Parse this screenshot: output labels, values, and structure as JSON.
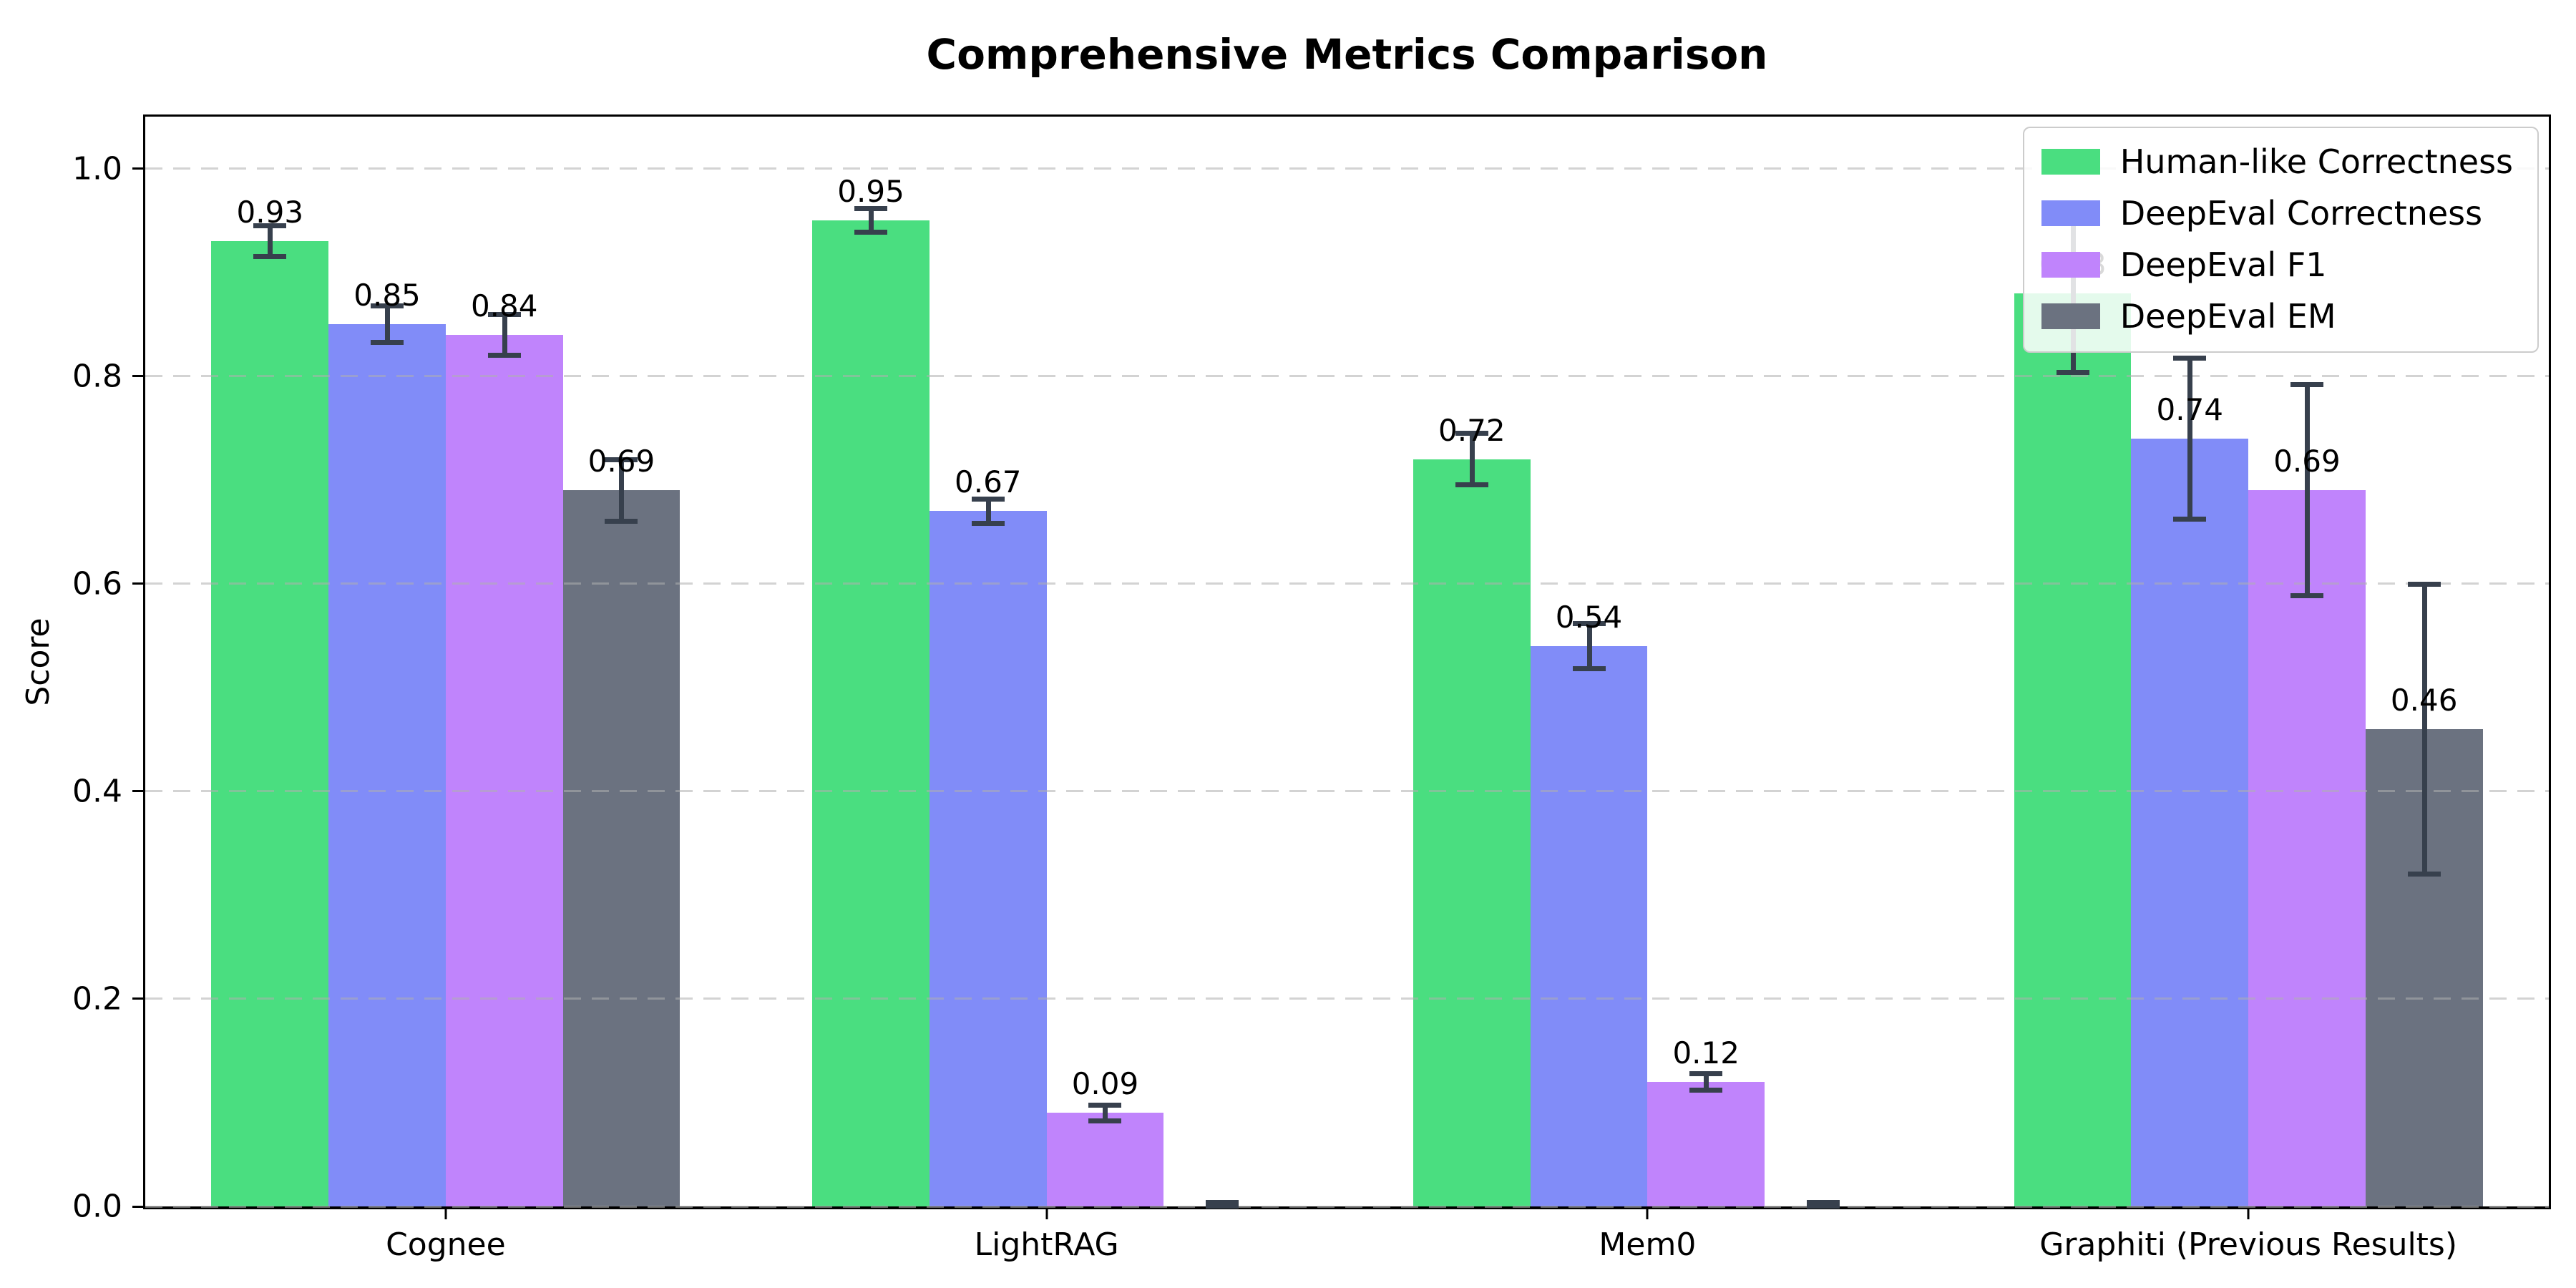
{
  "title": "Comprehensive Metrics Comparison",
  "colors": {
    "error_bar": "#37404d",
    "grid": "#afafaf",
    "legend_border": "#cccccc",
    "series": [
      "#4ade80",
      "#818cf8",
      "#c084fc",
      "#6b7280"
    ]
  },
  "chart_data": {
    "type": "bar",
    "title": "Comprehensive Metrics Comparison",
    "xlabel": "",
    "ylabel": "Score",
    "ylim": [
      0,
      1.05
    ],
    "yticks": [
      "0.0",
      "0.2",
      "0.4",
      "0.6",
      "0.8",
      "1.0"
    ],
    "grid": "horizontal-dashed",
    "legend_position": "upper right",
    "categories": [
      "Cognee",
      "LightRAG",
      "Mem0",
      "Graphiti (Previous Results)"
    ],
    "series": [
      {
        "name": "Human-like Correctness",
        "color": "#4ade80",
        "values": [
          0.93,
          0.95,
          0.72,
          0.88
        ],
        "errors": [
          0.015,
          0.012,
          0.025,
          0.077
        ],
        "labels": [
          "0.93",
          "0.95",
          "0.72",
          "0.88"
        ]
      },
      {
        "name": "DeepEval Correctness",
        "color": "#818cf8",
        "values": [
          0.85,
          0.67,
          0.54,
          0.74
        ],
        "errors": [
          0.018,
          0.012,
          0.022,
          0.078
        ],
        "labels": [
          "0.85",
          "0.67",
          "0.54",
          "0.74"
        ]
      },
      {
        "name": "DeepEval F1",
        "color": "#c084fc",
        "values": [
          0.84,
          0.09,
          0.12,
          0.69
        ],
        "errors": [
          0.02,
          0.008,
          0.008,
          0.102
        ],
        "labels": [
          "0.84",
          "0.09",
          "0.12",
          "0.69"
        ]
      },
      {
        "name": "DeepEval EM",
        "color": "#6b7280",
        "values": [
          0.69,
          0.0,
          0.0,
          0.46
        ],
        "errors": [
          0.03,
          0.004,
          0.004,
          0.14
        ],
        "labels": [
          "0.69",
          "",
          "",
          "0.46"
        ]
      }
    ]
  }
}
